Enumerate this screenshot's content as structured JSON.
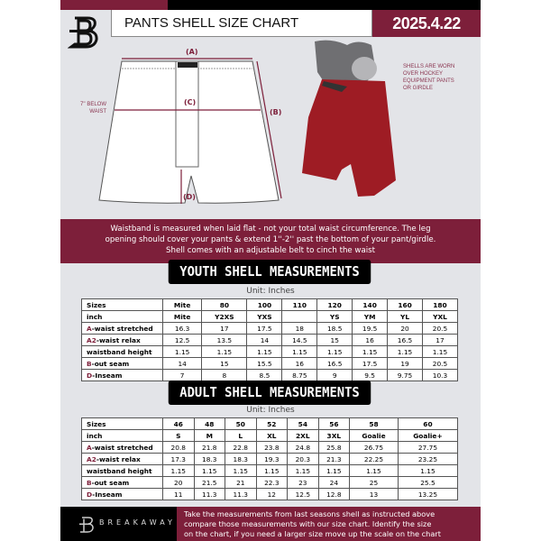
{
  "header": {
    "title": "PANTS SHELL SIZE CHART",
    "date": "2025.4.22"
  },
  "diagram": {
    "label_a": "(A)",
    "label_b": "(B)",
    "label_c": "(C)",
    "label_d": "(D)",
    "below_waist": [
      "7'' BELOW",
      "WAIST"
    ],
    "note": [
      "SHELLS ARE WORN",
      "OVER HOCKEY",
      "EQUIPMENT PANTS",
      "OR GIRDLE"
    ]
  },
  "instructions": [
    "Waistband is measured when laid flat - not your total waist circumference. The leg",
    "opening should cover your pants & extend 1''-2'' past the bottom of your pant/girdle.",
    "Shell comes with an adjustable belt to cinch the waist"
  ],
  "youth": {
    "title": "YOUTH SHELL MEASUREMENTS",
    "unit": "Unit: Inches",
    "rows": [
      {
        "prefix": "",
        "label": "Sizes",
        "values": [
          "Mite",
          "80",
          "100",
          "110",
          "120",
          "140",
          "160",
          "180"
        ]
      },
      {
        "prefix": "",
        "label": "inch",
        "values": [
          "Mite",
          "Y2XS",
          "YXS",
          "",
          "YS",
          "YM",
          "YL",
          "YXL"
        ]
      },
      {
        "prefix": "A",
        "label": "-waist stretched",
        "values": [
          "16.3",
          "17",
          "17.5",
          "18",
          "18.5",
          "19.5",
          "20",
          "20.5"
        ]
      },
      {
        "prefix": "A2",
        "label": "-waist relax",
        "values": [
          "12.5",
          "13.5",
          "14",
          "14.5",
          "15",
          "16",
          "16.5",
          "17"
        ]
      },
      {
        "prefix": "",
        "label": "waistband height",
        "values": [
          "1.15",
          "1.15",
          "1.15",
          "1.15",
          "1.15",
          "1.15",
          "1.15",
          "1.15"
        ]
      },
      {
        "prefix": "B",
        "label": "-out seam",
        "values": [
          "14",
          "15",
          "15.5",
          "16",
          "16.5",
          "17.5",
          "19",
          "20.5"
        ]
      },
      {
        "prefix": "D",
        "label": "-Inseam",
        "values": [
          "7",
          "8",
          "8.5",
          "8.75",
          "9",
          "9.5",
          "9.75",
          "10.3"
        ]
      }
    ]
  },
  "adult": {
    "title": "ADULT SHELL MEASUREMENTS",
    "unit": "Unit: Inches",
    "rows": [
      {
        "prefix": "",
        "label": "Sizes",
        "values": [
          "46",
          "48",
          "50",
          "52",
          "54",
          "56",
          "58",
          "60"
        ]
      },
      {
        "prefix": "",
        "label": "inch",
        "values": [
          "S",
          "M",
          "L",
          "XL",
          "2XL",
          "3XL",
          "Goalie",
          "Goalie+"
        ]
      },
      {
        "prefix": "A",
        "label": "-waist stretched",
        "values": [
          "20.8",
          "21.8",
          "22.8",
          "23.8",
          "24.8",
          "25.8",
          "26.75",
          "27.75"
        ]
      },
      {
        "prefix": "A2",
        "label": "-waist relax",
        "values": [
          "17.3",
          "18.3",
          "18.3",
          "19.3",
          "20.3",
          "21.3",
          "22.25",
          "23.25"
        ]
      },
      {
        "prefix": "",
        "label": "waistband height",
        "values": [
          "1.15",
          "1.15",
          "1.15",
          "1.15",
          "1.15",
          "1.15",
          "1.15",
          "1.15"
        ]
      },
      {
        "prefix": "B",
        "label": "-out seam",
        "values": [
          "20",
          "21.5",
          "21",
          "22.3",
          "23",
          "24",
          "25",
          "25.5"
        ]
      },
      {
        "prefix": "D",
        "label": "-Inseam",
        "values": [
          "11",
          "11.3",
          "11.3",
          "12",
          "12.5",
          "12.8",
          "13",
          "13.25"
        ]
      }
    ]
  },
  "footer": {
    "brand": "BREAKAWAY",
    "text": [
      "Take the measurements from last seasons shell as instructed above",
      "compare those measurements  with our size chart. Identify the size",
      "on the chart, if you need a larger size move up the scale on the chart"
    ]
  },
  "colors": {
    "accent": "#7d1f3a",
    "background": "#e3e4e8"
  }
}
